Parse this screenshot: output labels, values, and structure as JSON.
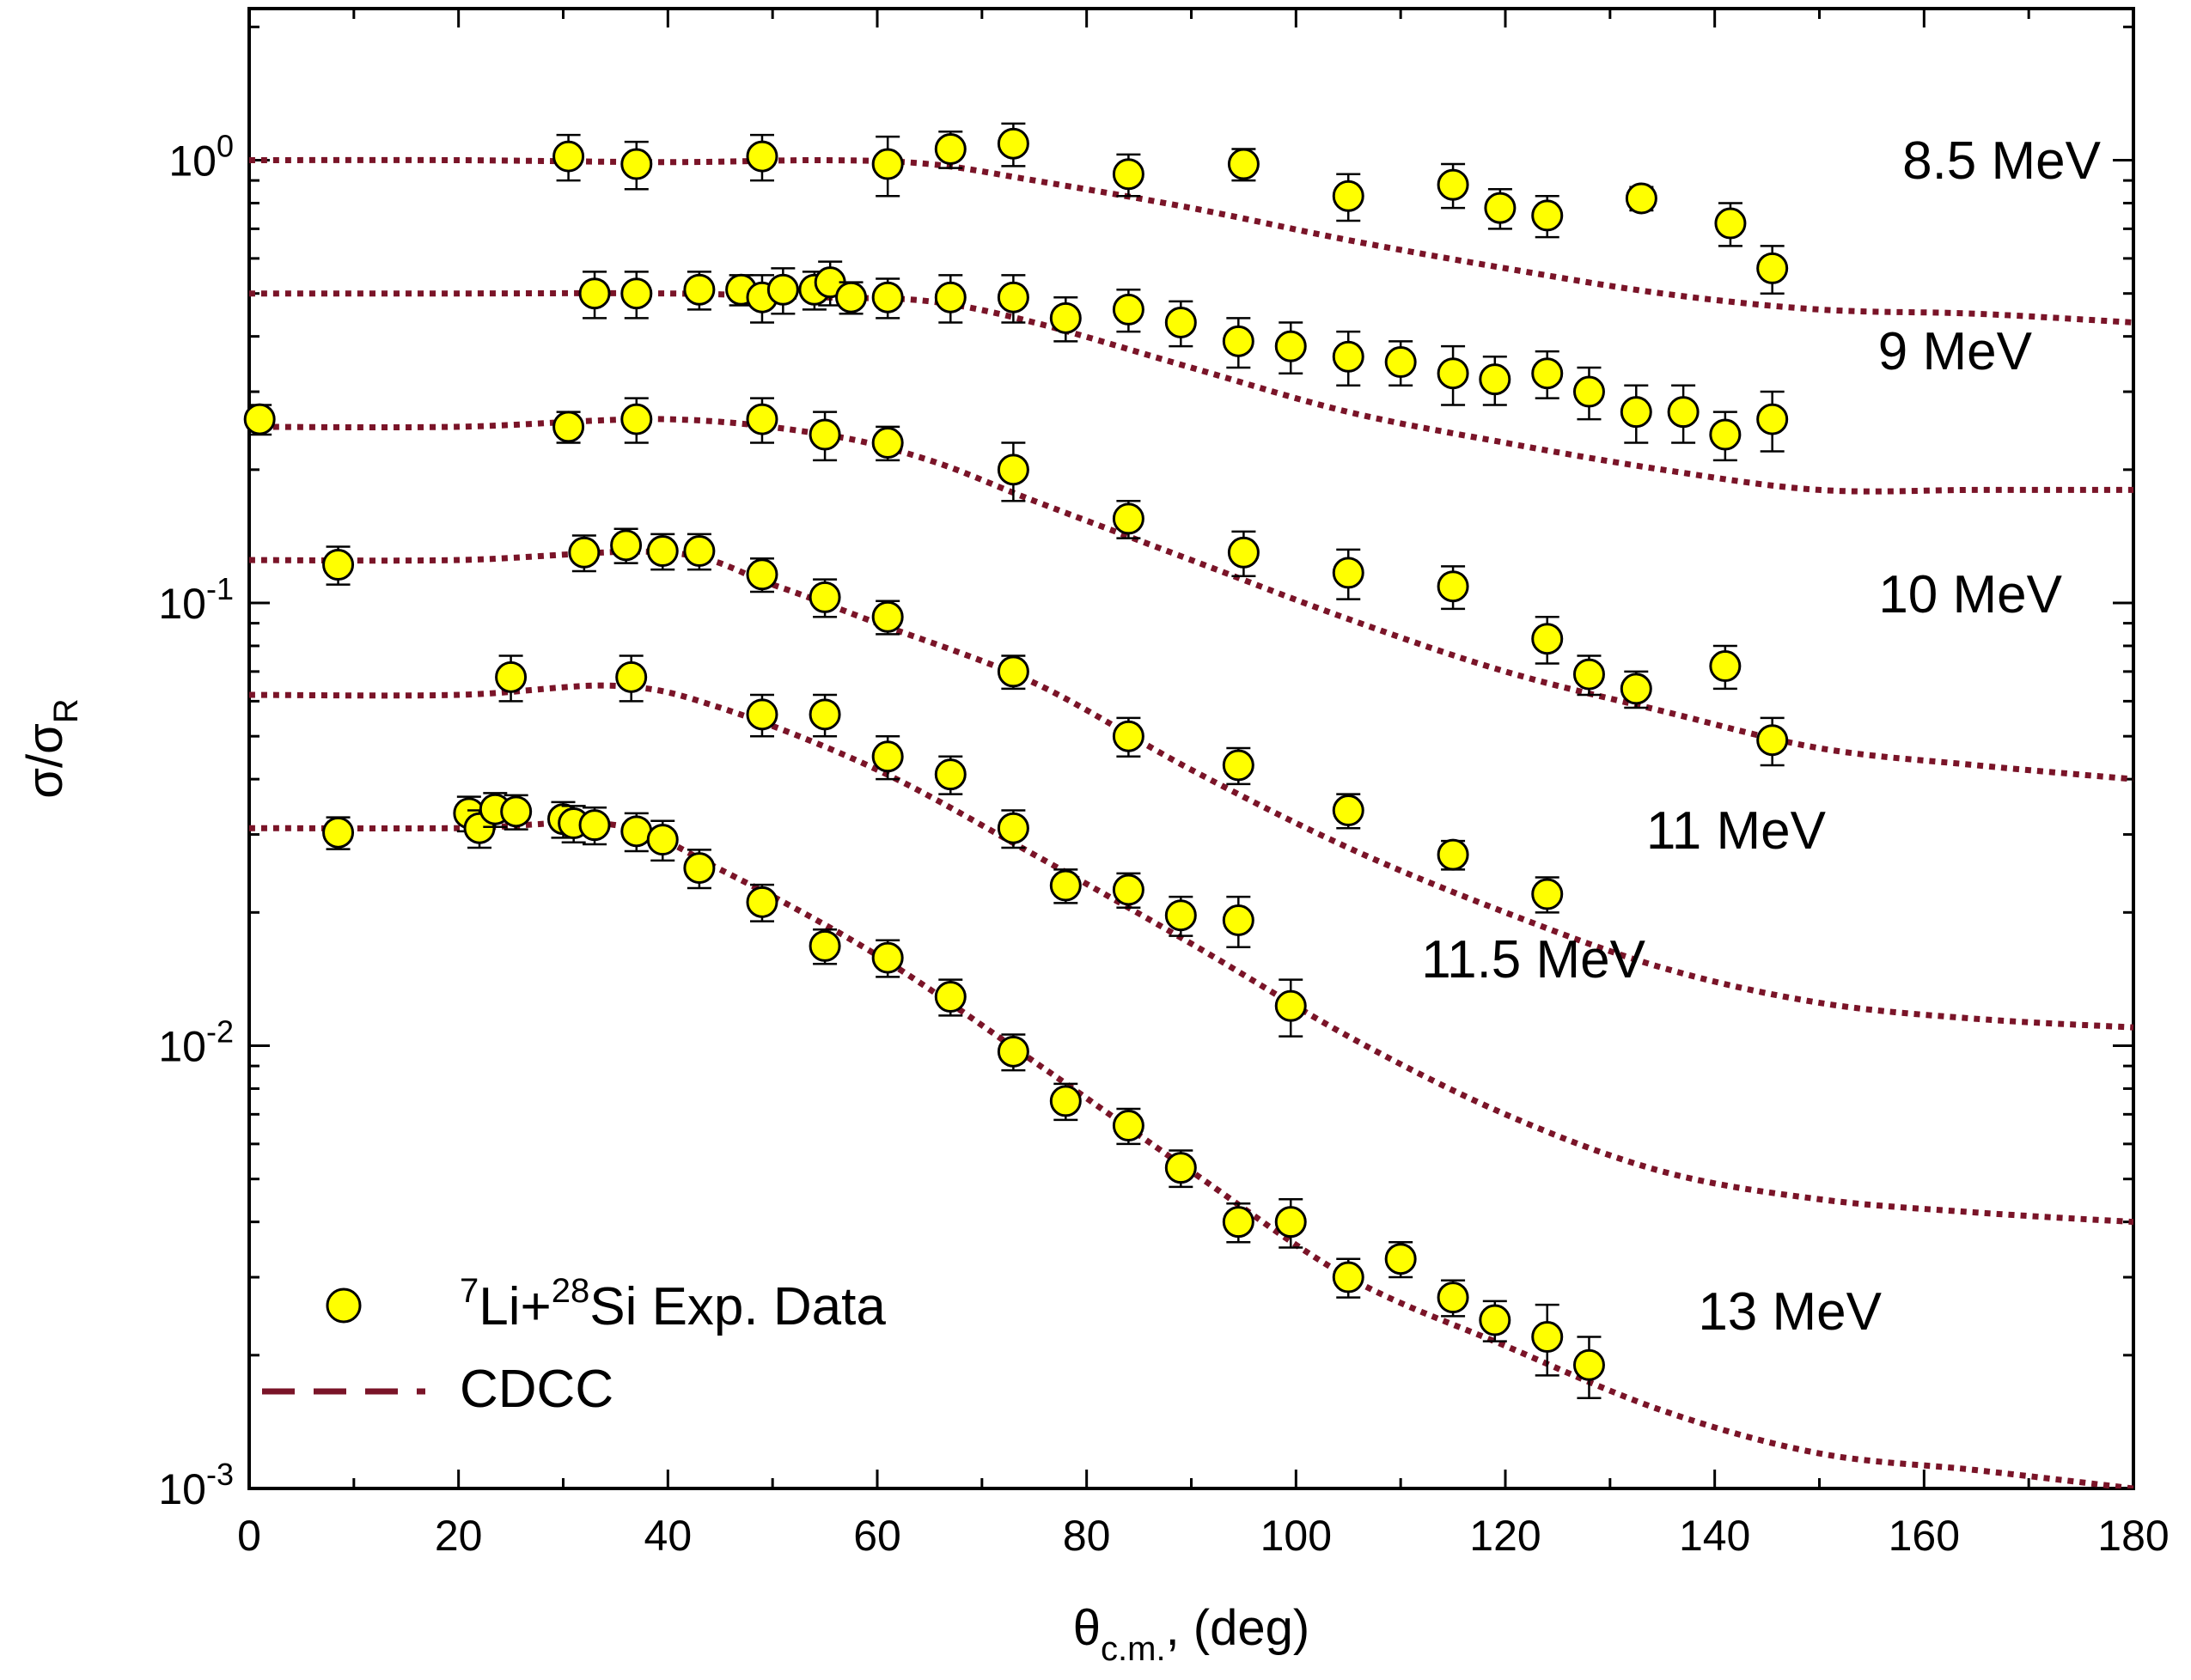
{
  "chart_data": {
    "type": "scatter",
    "xlabel": {
      "main": "θ",
      "sub": "c.m.",
      "rest": ", (deg)"
    },
    "ylabel": {
      "main": "σ/σ",
      "sub": "R"
    },
    "xlim": [
      0,
      180
    ],
    "ylim": [
      0.001,
      2.2
    ],
    "yscale": "log",
    "x_ticks": [
      "0",
      "20",
      "40",
      "60",
      "80",
      "100",
      "120",
      "140",
      "160",
      "180"
    ],
    "y_ticks": [
      {
        "value": 1,
        "base": "10",
        "exp": "0"
      },
      {
        "value": 0.1,
        "base": "10",
        "exp": "-1"
      },
      {
        "value": 0.01,
        "base": "10",
        "exp": "-2"
      },
      {
        "value": 0.001,
        "base": "10",
        "exp": "-3"
      }
    ],
    "marker_color": "#ffff00",
    "curve_color": "#7a1428",
    "legend": {
      "position": "bottom-left",
      "entries": [
        {
          "kind": "marker",
          "text_parts": [
            {
              "sup": "7"
            },
            {
              "t": "Li+"
            },
            {
              "sup": "28"
            },
            {
              "t": "Si Exp. Data"
            }
          ]
        },
        {
          "kind": "line",
          "text_parts": [
            {
              "t": "CDCC"
            }
          ]
        }
      ]
    },
    "series": [
      {
        "name": "8.5 MeV",
        "points": [
          [
            30.5,
            1.02,
            0.12
          ],
          [
            37,
            0.98,
            0.12
          ],
          [
            49,
            1.02,
            0.12
          ],
          [
            61,
            0.98,
            0.15
          ],
          [
            67,
            1.06,
            0.1
          ],
          [
            73,
            1.09,
            0.12
          ],
          [
            84,
            0.93,
            0.1
          ],
          [
            95,
            0.98,
            0.08
          ],
          [
            105,
            0.83,
            0.1
          ],
          [
            115,
            0.88,
            0.1
          ],
          [
            119.5,
            0.78,
            0.08
          ],
          [
            124,
            0.75,
            0.08
          ],
          [
            133,
            0.82,
            0.05
          ],
          [
            141.5,
            0.72,
            0.08
          ],
          [
            145.5,
            0.57,
            0.07
          ]
        ],
        "curve": [
          [
            0,
            1.0
          ],
          [
            20,
            1.0
          ],
          [
            40,
            0.99
          ],
          [
            55,
            1.0
          ],
          [
            65,
            0.98
          ],
          [
            75,
            0.9
          ],
          [
            90,
            0.78
          ],
          [
            105,
            0.66
          ],
          [
            120,
            0.57
          ],
          [
            135,
            0.5
          ],
          [
            150,
            0.46
          ],
          [
            165,
            0.45
          ],
          [
            180,
            0.43
          ]
        ]
      },
      {
        "name": "9 MeV",
        "points": [
          [
            33,
            0.5,
            0.06
          ],
          [
            37,
            0.5,
            0.06
          ],
          [
            43,
            0.51,
            0.05
          ],
          [
            47,
            0.51,
            0.04
          ],
          [
            49,
            0.49,
            0.06
          ],
          [
            51,
            0.51,
            0.06
          ],
          [
            54,
            0.51,
            0.05
          ],
          [
            55.5,
            0.53,
            0.06
          ],
          [
            57.5,
            0.49,
            0.04
          ],
          [
            61,
            0.49,
            0.05
          ],
          [
            67,
            0.49,
            0.06
          ],
          [
            73,
            0.49,
            0.06
          ],
          [
            78,
            0.44,
            0.05
          ],
          [
            84,
            0.46,
            0.05
          ],
          [
            89,
            0.43,
            0.05
          ],
          [
            94.5,
            0.39,
            0.05
          ],
          [
            99.5,
            0.38,
            0.05
          ],
          [
            105,
            0.36,
            0.05
          ],
          [
            110,
            0.35,
            0.04
          ],
          [
            115,
            0.33,
            0.05
          ],
          [
            119,
            0.32,
            0.04
          ],
          [
            124,
            0.33,
            0.04
          ],
          [
            128,
            0.3,
            0.04
          ],
          [
            132.5,
            0.27,
            0.04
          ],
          [
            137,
            0.27,
            0.04
          ],
          [
            141,
            0.24,
            0.03
          ],
          [
            145.5,
            0.26,
            0.04
          ]
        ],
        "curve": [
          [
            0,
            0.5
          ],
          [
            20,
            0.5
          ],
          [
            40,
            0.5
          ],
          [
            55,
            0.49
          ],
          [
            65,
            0.48
          ],
          [
            75,
            0.43
          ],
          [
            90,
            0.34
          ],
          [
            105,
            0.27
          ],
          [
            120,
            0.23
          ],
          [
            135,
            0.2
          ],
          [
            150,
            0.18
          ],
          [
            165,
            0.18
          ],
          [
            180,
            0.18
          ]
        ]
      },
      {
        "name": "10 MeV",
        "points": [
          [
            1,
            0.26,
            0.02
          ],
          [
            30.5,
            0.25,
            0.02
          ],
          [
            37,
            0.26,
            0.03
          ],
          [
            49,
            0.26,
            0.03
          ],
          [
            55,
            0.24,
            0.03
          ],
          [
            61,
            0.23,
            0.02
          ],
          [
            73,
            0.2,
            0.03
          ],
          [
            84,
            0.155,
            0.015
          ],
          [
            95,
            0.13,
            0.015
          ],
          [
            105,
            0.117,
            0.015
          ],
          [
            115,
            0.109,
            0.012
          ],
          [
            124,
            0.083,
            0.01
          ],
          [
            128,
            0.069,
            0.007
          ],
          [
            132.5,
            0.064,
            0.006
          ],
          [
            141,
            0.072,
            0.008
          ],
          [
            145.5,
            0.049,
            0.006
          ]
        ],
        "curve": [
          [
            0,
            0.25
          ],
          [
            20,
            0.25
          ],
          [
            40,
            0.26
          ],
          [
            55,
            0.24
          ],
          [
            65,
            0.21
          ],
          [
            75,
            0.17
          ],
          [
            90,
            0.125
          ],
          [
            105,
            0.092
          ],
          [
            120,
            0.07
          ],
          [
            135,
            0.057
          ],
          [
            150,
            0.047
          ],
          [
            165,
            0.043
          ],
          [
            180,
            0.04
          ]
        ]
      },
      {
        "name": "11 MeV",
        "points": [
          [
            8.5,
            0.122,
            0.012
          ],
          [
            32,
            0.13,
            0.012
          ],
          [
            36,
            0.135,
            0.012
          ],
          [
            39.5,
            0.131,
            0.012
          ],
          [
            43,
            0.131,
            0.012
          ],
          [
            49,
            0.116,
            0.01
          ],
          [
            55,
            0.103,
            0.01
          ],
          [
            61,
            0.093,
            0.008
          ],
          [
            73,
            0.07,
            0.006
          ],
          [
            84,
            0.05,
            0.005
          ],
          [
            94.5,
            0.043,
            0.004
          ],
          [
            105,
            0.034,
            0.003
          ],
          [
            115,
            0.027,
            0.002
          ],
          [
            124,
            0.022,
            0.002
          ]
        ],
        "curve": [
          [
            0,
            0.125
          ],
          [
            20,
            0.125
          ],
          [
            40,
            0.13
          ],
          [
            50,
            0.11
          ],
          [
            60,
            0.09
          ],
          [
            75,
            0.066
          ],
          [
            90,
            0.042
          ],
          [
            105,
            0.028
          ],
          [
            120,
            0.02
          ],
          [
            135,
            0.015
          ],
          [
            150,
            0.0125
          ],
          [
            165,
            0.0115
          ],
          [
            180,
            0.011
          ]
        ]
      },
      {
        "name": "11.5 MeV",
        "points": [
          [
            25,
            0.068,
            0.008
          ],
          [
            36.5,
            0.068,
            0.008
          ],
          [
            49,
            0.056,
            0.006
          ],
          [
            55,
            0.056,
            0.006
          ],
          [
            61,
            0.045,
            0.005
          ],
          [
            67,
            0.041,
            0.004
          ],
          [
            73,
            0.031,
            0.003
          ],
          [
            78,
            0.023,
            0.002
          ],
          [
            84,
            0.0225,
            0.002
          ],
          [
            89,
            0.0197,
            0.002
          ],
          [
            94.5,
            0.0192,
            0.0025
          ],
          [
            99.5,
            0.0123,
            0.0018
          ]
        ],
        "curve": [
          [
            0,
            0.062
          ],
          [
            20,
            0.062
          ],
          [
            35,
            0.065
          ],
          [
            45,
            0.058
          ],
          [
            60,
            0.042
          ],
          [
            75,
            0.027
          ],
          [
            90,
            0.017
          ],
          [
            105,
            0.0105
          ],
          [
            120,
            0.007
          ],
          [
            135,
            0.0052
          ],
          [
            150,
            0.0045
          ],
          [
            165,
            0.0042
          ],
          [
            180,
            0.004
          ]
        ]
      },
      {
        "name": "13 MeV",
        "points": [
          [
            8.5,
            0.0303,
            0.0025
          ],
          [
            21,
            0.0335,
            0.003
          ],
          [
            22,
            0.031,
            0.003
          ],
          [
            23.5,
            0.0342,
            0.003
          ],
          [
            25.5,
            0.0338,
            0.003
          ],
          [
            30,
            0.0325,
            0.003
          ],
          [
            31,
            0.0318,
            0.003
          ],
          [
            33,
            0.0315,
            0.003
          ],
          [
            37,
            0.0305,
            0.003
          ],
          [
            39.5,
            0.0292,
            0.003
          ],
          [
            43,
            0.0252,
            0.0025
          ],
          [
            49,
            0.0211,
            0.002
          ],
          [
            55,
            0.0168,
            0.0015
          ],
          [
            61,
            0.0158,
            0.0015
          ],
          [
            67,
            0.0129,
            0.0012
          ],
          [
            73,
            0.0097,
            0.0009
          ],
          [
            78,
            0.0075,
            0.0007
          ],
          [
            84,
            0.0066,
            0.0006
          ],
          [
            89,
            0.0053,
            0.0005
          ],
          [
            94.5,
            0.004,
            0.0004
          ],
          [
            99.5,
            0.004,
            0.0005
          ],
          [
            105,
            0.003,
            0.0003
          ],
          [
            110,
            0.0033,
            0.0003
          ],
          [
            115,
            0.0027,
            0.00025
          ],
          [
            119,
            0.0024,
            0.00025
          ],
          [
            124,
            0.0022,
            0.0004
          ],
          [
            128,
            0.0019,
            0.0003
          ]
        ],
        "curve": [
          [
            0,
            0.031
          ],
          [
            20,
            0.031
          ],
          [
            35,
            0.0315
          ],
          [
            45,
            0.025
          ],
          [
            60,
            0.016
          ],
          [
            75,
            0.0092
          ],
          [
            90,
            0.0052
          ],
          [
            105,
            0.003
          ],
          [
            120,
            0.0021
          ],
          [
            135,
            0.0015
          ],
          [
            150,
            0.0012
          ],
          [
            165,
            0.0011
          ],
          [
            180,
            0.001
          ]
        ]
      }
    ],
    "energy_labels": [
      "8.5 MeV",
      "9 MeV",
      "10 MeV",
      "11 MeV",
      "11.5 MeV",
      "13 MeV"
    ]
  }
}
